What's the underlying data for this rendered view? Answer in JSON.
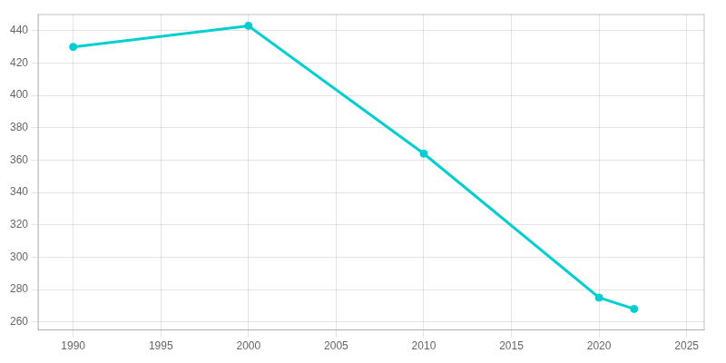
{
  "chart_data": {
    "type": "line",
    "x": [
      1990,
      2000,
      2010,
      2020,
      2022
    ],
    "values": [
      430,
      443,
      364,
      275,
      268
    ],
    "color": "#00CED1",
    "marker": "circle",
    "xlim": [
      1988,
      2026
    ],
    "ylim": [
      255,
      450
    ],
    "xticks": [
      1990,
      1995,
      2000,
      2005,
      2010,
      2015,
      2020,
      2025
    ],
    "yticks": [
      260,
      280,
      300,
      320,
      340,
      360,
      380,
      400,
      420,
      440
    ],
    "grid": true
  }
}
